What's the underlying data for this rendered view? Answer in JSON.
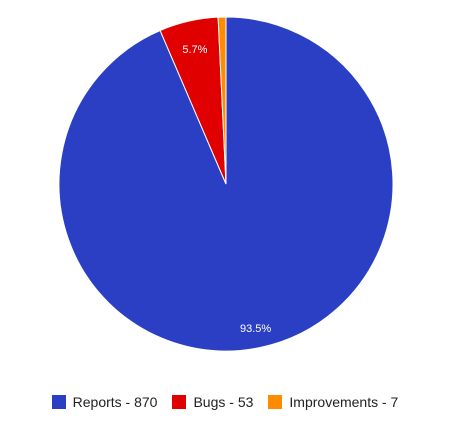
{
  "chart_data": {
    "type": "pie",
    "legend_position": "bottom",
    "slices": [
      {
        "label": "Reports - 870",
        "value": 870,
        "percent_label": "93.5%",
        "color": "#2b3fc4"
      },
      {
        "label": "Bugs - 53",
        "value": 53,
        "percent_label": "5.7%",
        "color": "#e00000"
      },
      {
        "label": "Improvements - 7",
        "value": 7,
        "percent_label": "",
        "color": "#ff8c00"
      }
    ]
  }
}
